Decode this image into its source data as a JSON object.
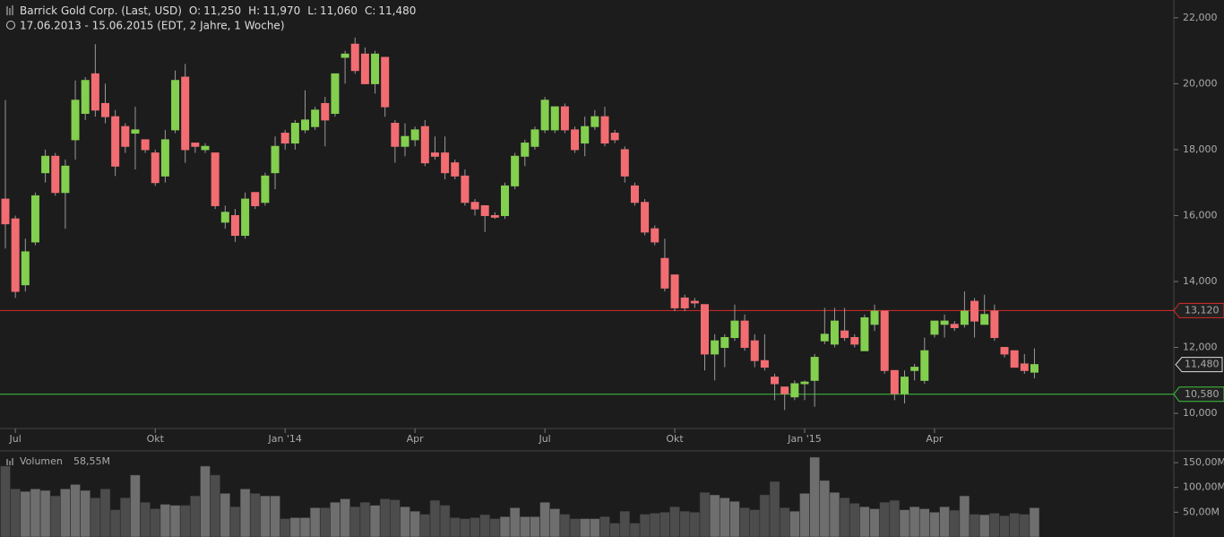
{
  "chart_data": {
    "type": "candlestick",
    "title": "Barrick Gold Corp. (Last, USD)",
    "quote": [
      {
        "label": "O:",
        "value": "11,250"
      },
      {
        "label": "H:",
        "value": "11,970"
      },
      {
        "label": "L:",
        "value": "11,060"
      },
      {
        "label": "C:",
        "value": "11,480"
      }
    ],
    "subtitle": "17.06.2013 - 15.06.2015 (EDT, 2 Jahre, 1 Woche)",
    "categories": [
      null,
      "Jul",
      null,
      null,
      null,
      null,
      null,
      null,
      null,
      null,
      null,
      null,
      null,
      null,
      null,
      "Okt",
      null,
      null,
      null,
      null,
      null,
      null,
      null,
      null,
      null,
      null,
      null,
      null,
      "Jan '14",
      null,
      null,
      null,
      null,
      null,
      null,
      null,
      null,
      null,
      null,
      null,
      null,
      "Apr",
      null,
      null,
      null,
      null,
      null,
      null,
      null,
      null,
      null,
      null,
      null,
      null,
      "Jul",
      null,
      null,
      null,
      null,
      null,
      null,
      null,
      null,
      null,
      null,
      null,
      null,
      "Okt",
      null,
      null,
      null,
      null,
      null,
      null,
      null,
      null,
      null,
      null,
      null,
      null,
      "Jan '15",
      null,
      null,
      null,
      null,
      null,
      null,
      null,
      null,
      null,
      null,
      null,
      null,
      "Apr",
      null,
      null,
      null,
      null,
      null,
      null,
      null,
      null,
      null,
      null
    ],
    "open": [
      16500,
      15900,
      13900,
      15200,
      17300,
      17800,
      16700,
      18300,
      19100,
      20300,
      19400,
      19000,
      18700,
      18500,
      18300,
      17900,
      17200,
      18600,
      20200,
      18200,
      18000,
      17900,
      15800,
      16000,
      15400,
      16700,
      16400,
      17300,
      18500,
      18200,
      18600,
      18700,
      19400,
      19100,
      20800,
      21200,
      20900,
      20000,
      20800,
      18800,
      18100,
      18300,
      18700,
      17900,
      17900,
      17600,
      17200,
      16400,
      16300,
      16000,
      16000,
      16900,
      17800,
      18100,
      18600,
      18600,
      19300,
      18600,
      18200,
      18700,
      19000,
      18500,
      18000,
      16900,
      16400,
      15600,
      14700,
      14200,
      13500,
      13400,
      13300,
      11800,
      12000,
      12300,
      12800,
      12200,
      11600,
      11100,
      10800,
      10500,
      10900,
      11000,
      12200,
      12100,
      12500,
      12300,
      11900,
      12700,
      13100,
      11300,
      10600,
      11300,
      11000,
      12400,
      12700,
      12700,
      12700,
      13400,
      12700,
      13100,
      12000,
      11900,
      11500,
      11250
    ],
    "high": [
      19500,
      16000,
      15300,
      16700,
      18000,
      17900,
      17700,
      20100,
      20200,
      21200,
      20000,
      19200,
      18800,
      19300,
      18300,
      18000,
      18600,
      20400,
      20600,
      18200,
      18200,
      17900,
      16300,
      16200,
      16700,
      16700,
      17300,
      18400,
      18600,
      18900,
      19800,
      19300,
      19600,
      20300,
      21000,
      21400,
      21100,
      21000,
      20800,
      18900,
      18800,
      18700,
      18900,
      18400,
      18400,
      17700,
      17400,
      16500,
      16300,
      16100,
      17000,
      17900,
      18300,
      18700,
      19600,
      19300,
      19400,
      18700,
      19000,
      19200,
      19300,
      18600,
      18100,
      17000,
      16500,
      15700,
      15300,
      14200,
      13600,
      13500,
      13300,
      12400,
      12400,
      13300,
      13000,
      12400,
      12400,
      11200,
      10800,
      11000,
      11000,
      11800,
      13200,
      13200,
      13200,
      12400,
      13000,
      13300,
      13100,
      11300,
      11300,
      11500,
      12300,
      12800,
      13000,
      12800,
      13700,
      13500,
      13600,
      13300,
      12000,
      11900,
      11800,
      11970
    ],
    "low": [
      15000,
      13500,
      13700,
      15100,
      17000,
      16600,
      15600,
      17700,
      18900,
      19000,
      18800,
      17200,
      17900,
      17400,
      17900,
      16900,
      17000,
      18500,
      17600,
      17900,
      17900,
      16200,
      15600,
      15200,
      15300,
      16200,
      16300,
      16800,
      18000,
      18000,
      18500,
      18600,
      18100,
      19000,
      20000,
      20300,
      20000,
      19700,
      19000,
      17600,
      17800,
      18100,
      17500,
      17700,
      17100,
      17100,
      16300,
      16000,
      15500,
      15900,
      15900,
      16800,
      17500,
      18000,
      18500,
      18500,
      18500,
      17900,
      17800,
      18600,
      18100,
      18200,
      17000,
      16300,
      15400,
      15100,
      13700,
      13100,
      13100,
      13200,
      11300,
      11000,
      11400,
      12200,
      11900,
      11400,
      11300,
      10400,
      10100,
      10400,
      10400,
      10200,
      12100,
      12000,
      12200,
      12000,
      11900,
      12500,
      11200,
      10400,
      10300,
      11000,
      10900,
      12300,
      12300,
      12500,
      12600,
      12300,
      12700,
      12200,
      11700,
      11400,
      11200,
      11060
    ],
    "close": [
      15750,
      13700,
      14900,
      16600,
      17800,
      16700,
      17500,
      19500,
      20100,
      19200,
      19000,
      17500,
      18100,
      18600,
      18000,
      17000,
      18300,
      20100,
      18000,
      18100,
      18100,
      16300,
      16100,
      15400,
      16500,
      16300,
      17200,
      18100,
      18200,
      18800,
      18900,
      19200,
      18900,
      20300,
      20900,
      20400,
      20000,
      20900,
      19300,
      18100,
      18400,
      18600,
      17600,
      17800,
      17300,
      17200,
      16400,
      16200,
      16000,
      15950,
      16900,
      17800,
      18200,
      18600,
      19500,
      19300,
      18600,
      18000,
      18700,
      19000,
      18200,
      18300,
      17200,
      16400,
      15500,
      15200,
      13800,
      13200,
      13200,
      13350,
      11800,
      12200,
      12300,
      12800,
      12000,
      11600,
      11400,
      10900,
      10600,
      10900,
      10950,
      11700,
      12400,
      12800,
      12300,
      12100,
      12900,
      13100,
      11300,
      10600,
      11100,
      11400,
      11900,
      12800,
      12800,
      12600,
      13100,
      12800,
      13000,
      12300,
      11800,
      11400,
      11300,
      11480
    ],
    "up_color": "#83cf4f",
    "down_color": "#f26d72",
    "ylim": [
      9540,
      22540
    ],
    "yticks": [
      {
        "value": 10000,
        "label": "10,000"
      },
      {
        "value": 12000,
        "label": "12,000"
      },
      {
        "value": 14000,
        "label": "14,000"
      },
      {
        "value": 16000,
        "label": "16,000"
      },
      {
        "value": 18000,
        "label": "18,000"
      },
      {
        "value": 20000,
        "label": "20,000"
      },
      {
        "value": 22000,
        "label": "22,000"
      }
    ],
    "lines": [
      {
        "value": 13120,
        "label": "13,120",
        "color": "#d62b2b"
      },
      {
        "value": 10580,
        "label": "10,580",
        "color": "#3ec43e"
      }
    ],
    "last": {
      "value": 11480,
      "label": "11,480"
    },
    "volume_title": "Volumen",
    "volume_label": "58,55M",
    "volume": [
      143,
      97,
      92,
      97,
      94,
      83,
      97,
      106,
      94,
      79,
      97,
      55,
      79,
      125,
      70,
      57,
      66,
      64,
      64,
      83,
      143,
      125,
      88,
      61,
      97,
      88,
      83,
      83,
      37,
      39,
      39,
      59,
      59,
      70,
      77,
      61,
      70,
      64,
      77,
      75,
      61,
      52,
      46,
      74,
      64,
      39,
      37,
      39,
      45,
      37,
      41,
      59,
      41,
      41,
      70,
      57,
      46,
      37,
      37,
      37,
      41,
      28,
      52,
      28,
      46,
      48,
      50,
      61,
      52,
      50,
      90,
      85,
      79,
      72,
      59,
      55,
      85,
      112,
      59,
      52,
      88,
      161,
      114,
      90,
      79,
      68,
      61,
      57,
      70,
      74,
      55,
      61,
      57,
      50,
      61,
      54,
      83,
      46,
      45,
      48,
      43,
      48,
      46,
      59
    ],
    "y2lim": [
      0,
      170
    ],
    "y2ticks": [
      {
        "value": 50,
        "label": "50,00M"
      },
      {
        "value": 100,
        "label": "100,00M"
      },
      {
        "value": 150,
        "label": "150,00M"
      }
    ]
  }
}
